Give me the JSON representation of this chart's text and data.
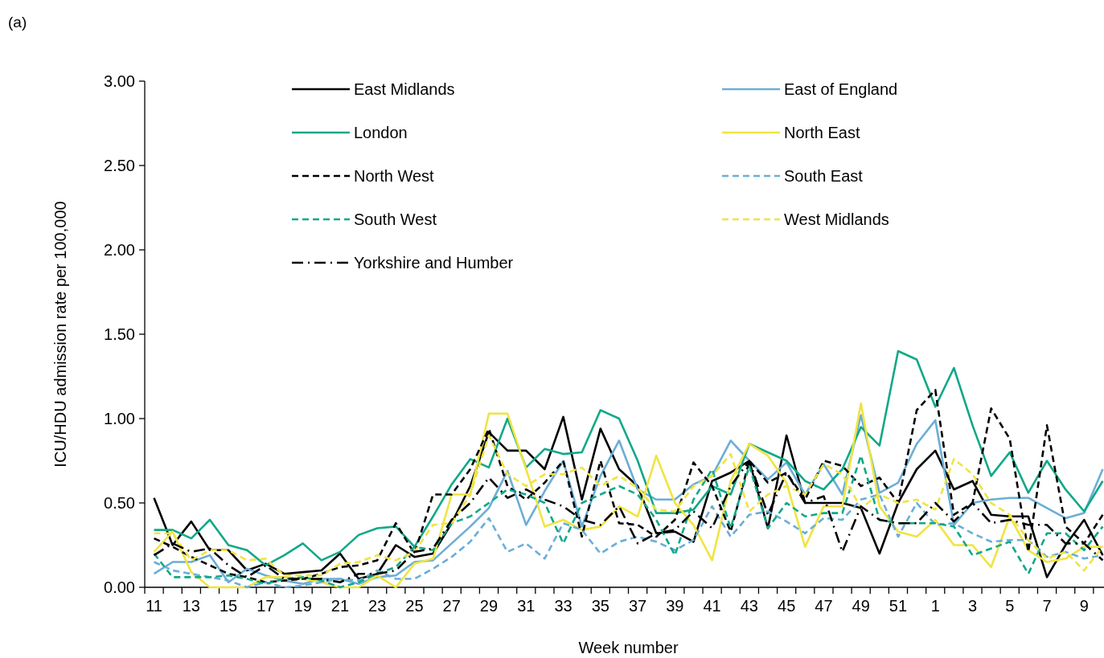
{
  "chart_data": {
    "type": "line",
    "annotations": [
      "(a)"
    ],
    "xlabel": "Week number",
    "ylabel": "ICU/HDU admission rate per 100,000",
    "categories": [
      "11",
      null,
      "13",
      null,
      "15",
      null,
      "17",
      null,
      "19",
      null,
      "21",
      null,
      "23",
      null,
      "25",
      null,
      "27",
      null,
      "29",
      null,
      "31",
      null,
      "33",
      null,
      "35",
      null,
      "37",
      null,
      "39",
      null,
      "41",
      null,
      "43",
      null,
      "45",
      null,
      "47",
      null,
      "49",
      null,
      "51",
      null,
      "1",
      null,
      "3",
      null,
      "5",
      null,
      "7",
      null,
      "9",
      null
    ],
    "ylim": [
      0,
      3
    ],
    "yticks": [
      {
        "value": 0,
        "label": "0.00"
      },
      {
        "value": 0.5,
        "label": "0.50"
      },
      {
        "value": 1,
        "label": "1.00"
      },
      {
        "value": 1.5,
        "label": "1.50"
      },
      {
        "value": 2,
        "label": "2.00"
      },
      {
        "value": 2.5,
        "label": "2.50"
      },
      {
        "value": 3,
        "label": "3.00"
      }
    ],
    "grid": false,
    "legend": "top",
    "marker": "none",
    "series": [
      {
        "name": "East Midlands",
        "color": "#000000",
        "line_style": "solid",
        "values": [
          0.53,
          0.25,
          0.39,
          0.22,
          0.22,
          0.1,
          0.14,
          0.08,
          0.09,
          0.1,
          0.2,
          0.05,
          0.08,
          0.25,
          0.18,
          0.2,
          0.38,
          0.6,
          0.92,
          0.81,
          0.81,
          0.7,
          1.01,
          0.52,
          0.94,
          0.7,
          0.6,
          0.32,
          0.33,
          0.27,
          0.63,
          0.68,
          0.75,
          0.35,
          0.9,
          0.5,
          0.5,
          0.5,
          0.47,
          0.2,
          0.5,
          0.7,
          0.81,
          0.58,
          0.63,
          0.43,
          0.42,
          0.42,
          0.06,
          0.25,
          0.4,
          0.19
        ]
      },
      {
        "name": "East of England",
        "color": "#6baed6",
        "line_style": "solid",
        "values": [
          0.08,
          0.15,
          0.15,
          0.19,
          0.03,
          0.11,
          0.07,
          0.04,
          0.02,
          0.05,
          0.05,
          0.02,
          0.06,
          0.07,
          0.15,
          0.16,
          0.26,
          0.36,
          0.47,
          0.69,
          0.37,
          0.57,
          0.75,
          0.36,
          0.66,
          0.87,
          0.58,
          0.52,
          0.52,
          0.61,
          0.66,
          0.87,
          0.75,
          0.64,
          0.74,
          0.55,
          0.73,
          0.55,
          1.02,
          0.56,
          0.62,
          0.85,
          0.99,
          0.37,
          0.5,
          0.52,
          0.53,
          0.53,
          0.47,
          0.41,
          0.44,
          0.7
        ]
      },
      {
        "name": "London",
        "color": "#10a888",
        "line_style": "solid",
        "values": [
          0.34,
          0.34,
          0.29,
          0.4,
          0.25,
          0.22,
          0.13,
          0.19,
          0.26,
          0.16,
          0.21,
          0.31,
          0.35,
          0.36,
          0.24,
          0.42,
          0.61,
          0.76,
          0.71,
          1.0,
          0.71,
          0.82,
          0.79,
          0.8,
          1.05,
          1.0,
          0.75,
          0.44,
          0.44,
          0.46,
          0.6,
          0.55,
          0.85,
          0.8,
          0.75,
          0.63,
          0.58,
          0.7,
          0.95,
          0.84,
          1.4,
          1.35,
          1.07,
          1.3,
          0.96,
          0.66,
          0.8,
          0.56,
          0.75,
          0.58,
          0.45,
          0.63
        ]
      },
      {
        "name": "North East",
        "color": "#f0e442",
        "line_style": "solid",
        "values": [
          0.21,
          0.33,
          0.09,
          0.0,
          0.0,
          0.0,
          0.06,
          0.06,
          0.05,
          0.03,
          0.0,
          0.0,
          0.07,
          0.0,
          0.14,
          0.17,
          0.55,
          0.55,
          1.03,
          1.03,
          0.7,
          0.36,
          0.4,
          0.34,
          0.36,
          0.48,
          0.42,
          0.78,
          0.5,
          0.37,
          0.16,
          0.63,
          0.85,
          0.78,
          0.62,
          0.24,
          0.48,
          0.48,
          1.09,
          0.48,
          0.33,
          0.3,
          0.4,
          0.25,
          0.25,
          0.12,
          0.42,
          0.22,
          0.15,
          0.17,
          0.24,
          0.24
        ]
      },
      {
        "name": "North West",
        "color": "#000000",
        "line_style": "dashed",
        "values": [
          0.29,
          0.24,
          0.18,
          0.13,
          0.08,
          0.06,
          0.03,
          0.04,
          0.05,
          0.08,
          0.12,
          0.13,
          0.16,
          0.38,
          0.2,
          0.55,
          0.55,
          0.7,
          0.94,
          0.6,
          0.52,
          0.62,
          0.75,
          0.3,
          0.75,
          0.38,
          0.37,
          0.3,
          0.4,
          0.74,
          0.6,
          0.33,
          0.75,
          0.62,
          0.68,
          0.52,
          0.75,
          0.72,
          0.6,
          0.65,
          0.5,
          1.05,
          1.17,
          0.43,
          0.5,
          1.06,
          0.88,
          0.21,
          0.96,
          0.36,
          0.26,
          0.43
        ]
      },
      {
        "name": "South East",
        "color": "#6baed6",
        "line_style": "dashed",
        "values": [
          0.15,
          0.1,
          0.08,
          0.06,
          0.04,
          0.0,
          0.03,
          0.0,
          0.01,
          0.03,
          0.05,
          0.04,
          0.1,
          0.05,
          0.05,
          0.11,
          0.18,
          0.27,
          0.41,
          0.21,
          0.26,
          0.17,
          0.38,
          0.34,
          0.2,
          0.27,
          0.3,
          0.27,
          0.22,
          0.28,
          0.48,
          0.3,
          0.43,
          0.45,
          0.39,
          0.32,
          0.41,
          0.4,
          0.52,
          0.55,
          0.3,
          0.5,
          0.37,
          0.38,
          0.32,
          0.27,
          0.28,
          0.28,
          0.18,
          0.21,
          0.17,
          0.19
        ]
      },
      {
        "name": "South West",
        "color": "#10a888",
        "line_style": "dashed",
        "values": [
          0.2,
          0.06,
          0.06,
          0.06,
          0.07,
          0.05,
          0.02,
          0.05,
          0.06,
          0.04,
          0.0,
          0.03,
          0.08,
          0.12,
          0.24,
          0.22,
          0.38,
          0.42,
          0.5,
          0.58,
          0.55,
          0.5,
          0.26,
          0.5,
          0.55,
          0.6,
          0.55,
          0.4,
          0.19,
          0.52,
          0.7,
          0.35,
          0.72,
          0.35,
          0.5,
          0.42,
          0.44,
          0.44,
          0.78,
          0.4,
          0.38,
          0.38,
          0.38,
          0.36,
          0.19,
          0.23,
          0.27,
          0.08,
          0.32,
          0.32,
          0.22,
          0.36
        ]
      },
      {
        "name": "West Midlands",
        "color": "#f0e442",
        "line_style": "dashed",
        "values": [
          0.32,
          0.32,
          0.16,
          0.22,
          0.22,
          0.16,
          0.17,
          0.07,
          0.07,
          0.07,
          0.14,
          0.15,
          0.19,
          0.16,
          0.21,
          0.37,
          0.38,
          0.55,
          0.9,
          0.67,
          0.6,
          0.67,
          0.67,
          0.71,
          0.6,
          0.66,
          0.59,
          0.46,
          0.45,
          0.6,
          0.66,
          0.79,
          0.45,
          0.55,
          0.6,
          0.55,
          0.73,
          0.67,
          0.47,
          0.55,
          0.5,
          0.52,
          0.46,
          0.76,
          0.67,
          0.5,
          0.43,
          0.28,
          0.17,
          0.21,
          0.1,
          0.24
        ]
      },
      {
        "name": "Yorkshire and Humber",
        "color": "#000000",
        "line_style": "dashdot",
        "values": [
          0.19,
          0.26,
          0.21,
          0.23,
          0.13,
          0.06,
          0.13,
          0.05,
          0.05,
          0.05,
          0.03,
          0.08,
          0.08,
          0.1,
          0.21,
          0.23,
          0.4,
          0.5,
          0.65,
          0.53,
          0.58,
          0.52,
          0.48,
          0.4,
          0.37,
          0.48,
          0.26,
          0.32,
          0.34,
          0.45,
          0.35,
          0.6,
          0.75,
          0.43,
          0.68,
          0.5,
          0.54,
          0.21,
          0.48,
          0.4,
          0.38,
          0.38,
          0.5,
          0.39,
          0.5,
          0.38,
          0.4,
          0.37,
          0.37,
          0.26,
          0.26,
          0.16
        ]
      }
    ]
  }
}
